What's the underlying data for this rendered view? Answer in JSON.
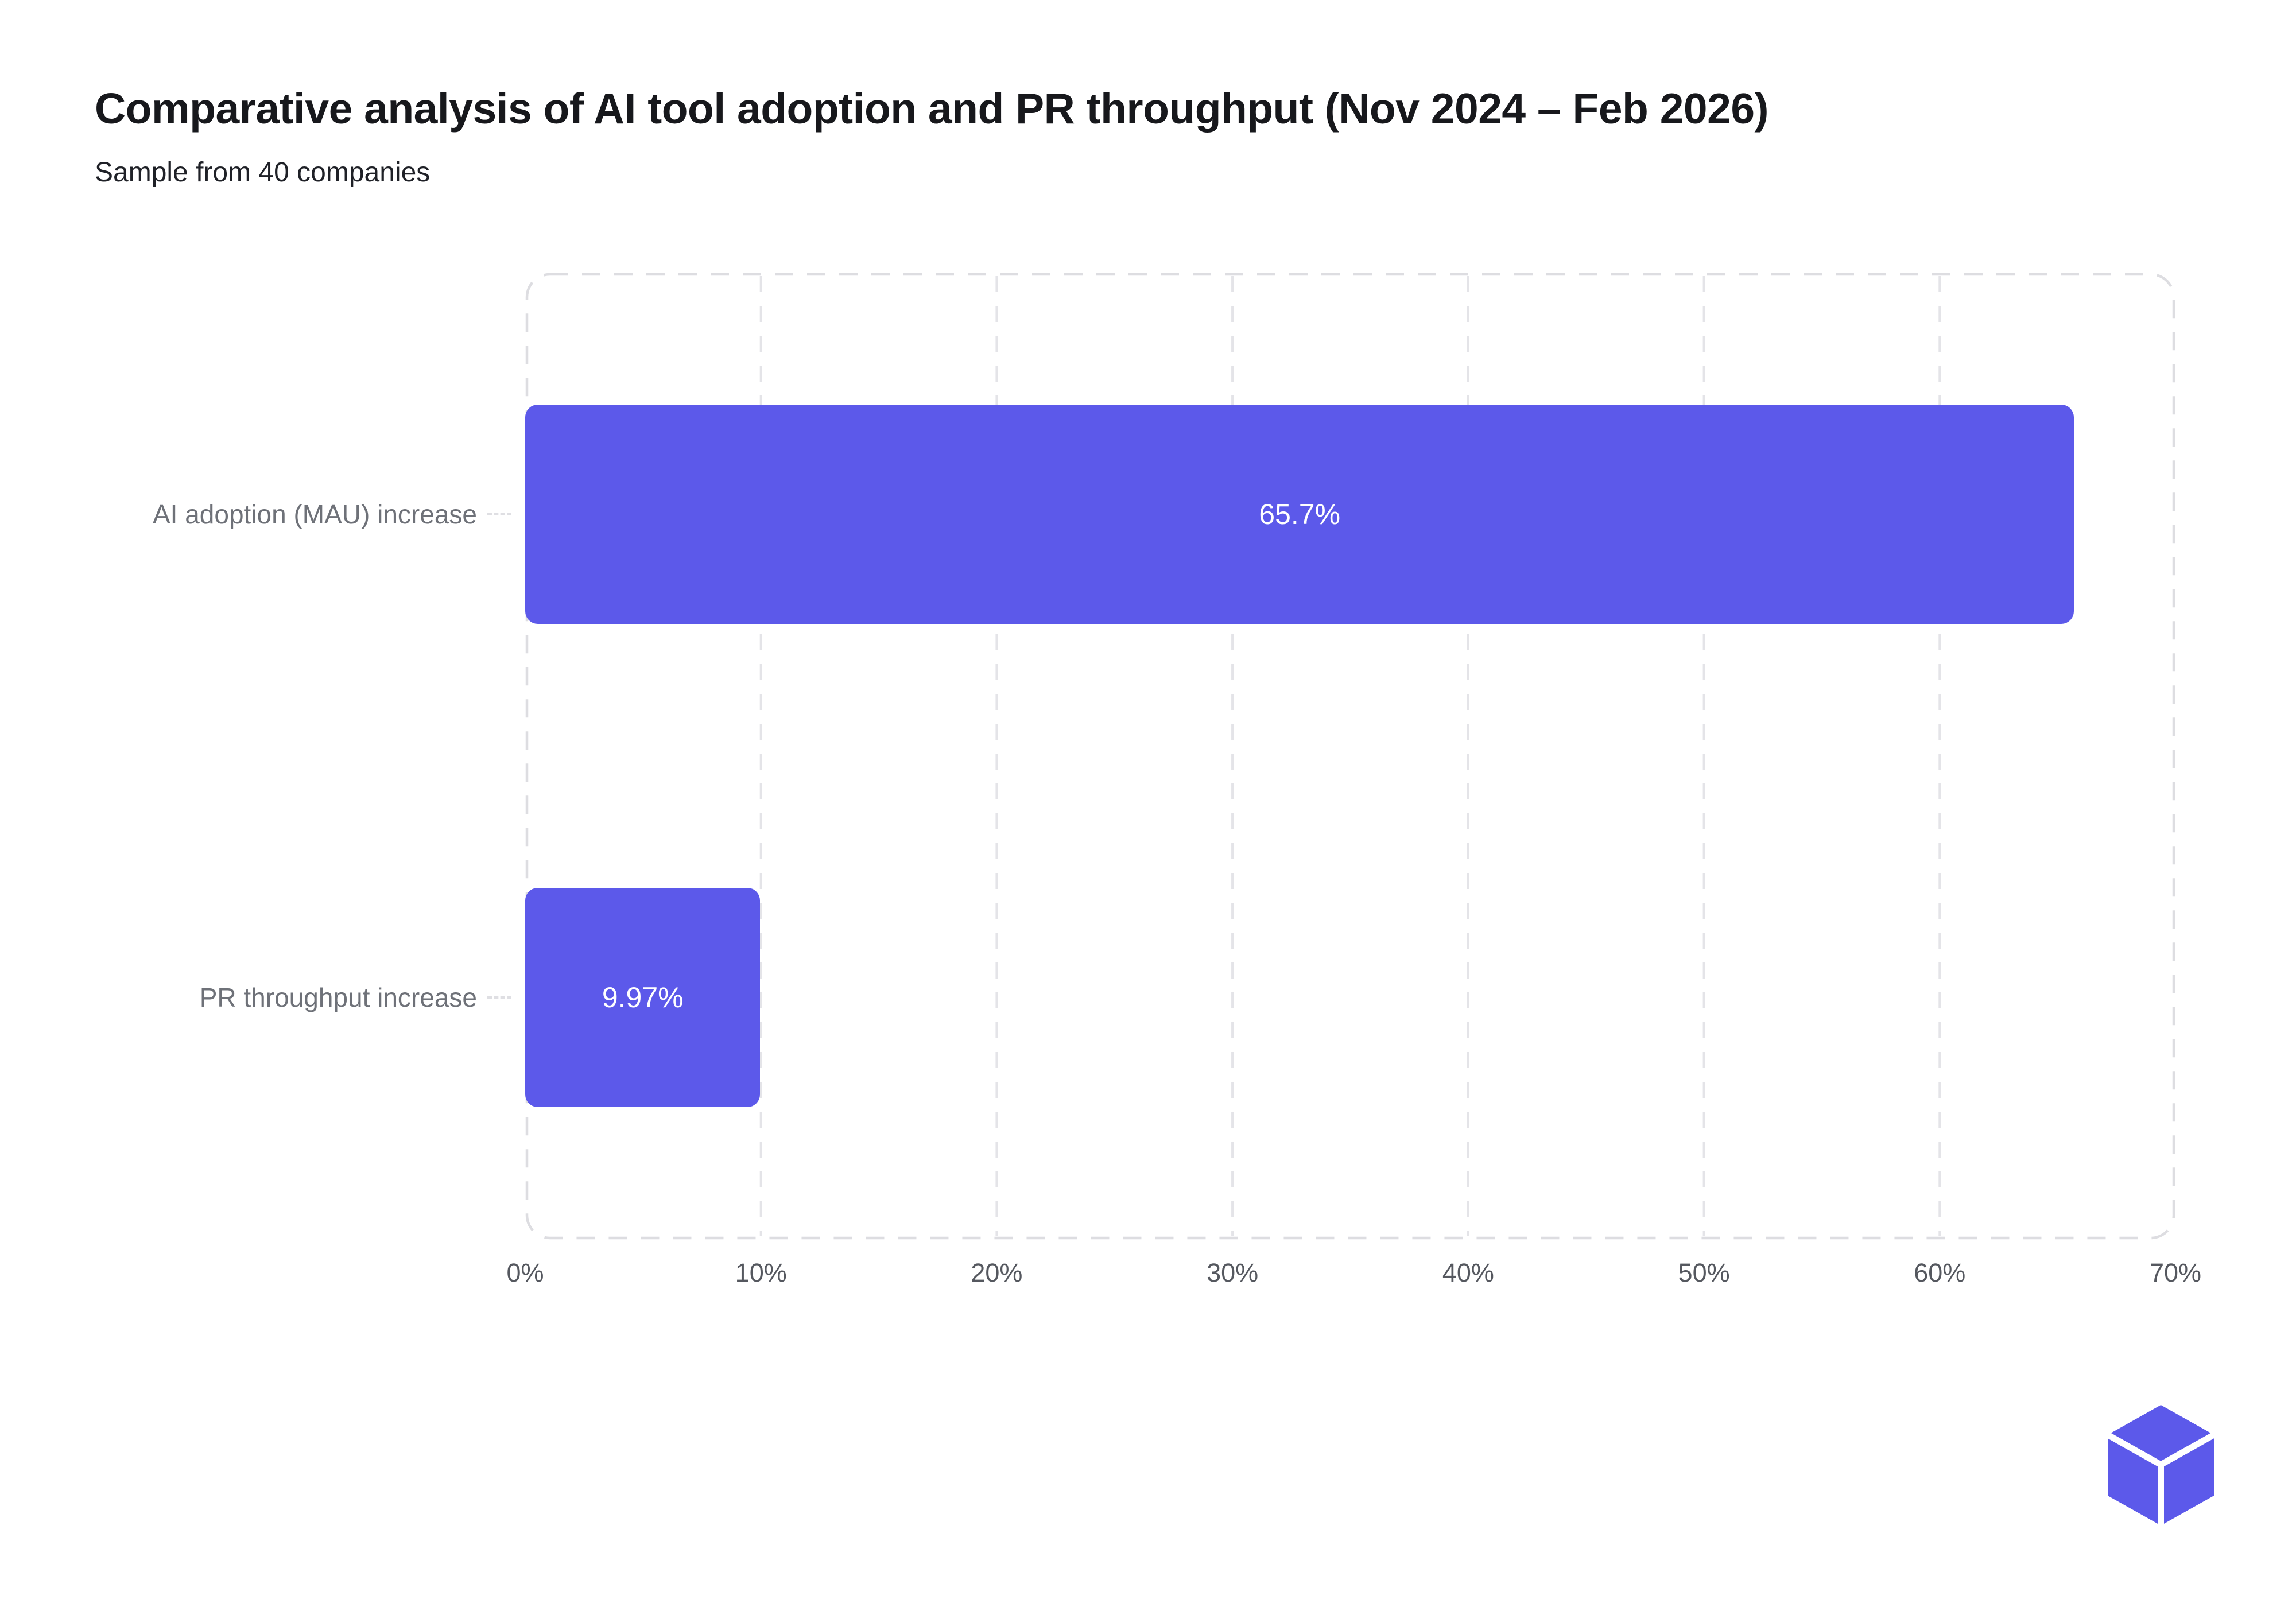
{
  "header": {
    "title": "Comparative analysis of AI tool adoption and PR throughput (Nov 2024 – Feb 2026)",
    "subtitle": "Sample from 40 companies"
  },
  "chart_data": {
    "type": "bar",
    "orientation": "horizontal",
    "title": "Comparative analysis of AI tool adoption and PR throughput (Nov 2024 – Feb 2026)",
    "subtitle": "Sample from 40 companies",
    "categories": [
      "AI adoption (MAU) increase",
      "PR throughput increase"
    ],
    "values": [
      65.7,
      9.97
    ],
    "value_labels": [
      "65.7%",
      "9.97%"
    ],
    "x_ticks": [
      "0%",
      "10%",
      "20%",
      "30%",
      "40%",
      "50%",
      "60%",
      "70%"
    ],
    "xlim": [
      0,
      70
    ],
    "xlabel": "",
    "ylabel": "",
    "grid": "dashed-vertical",
    "legend": "none",
    "bar_color": "#5C59EA",
    "value_label_color": "#ffffff"
  },
  "logo": {
    "name": "cube-logo",
    "color": "#5C59EA"
  }
}
